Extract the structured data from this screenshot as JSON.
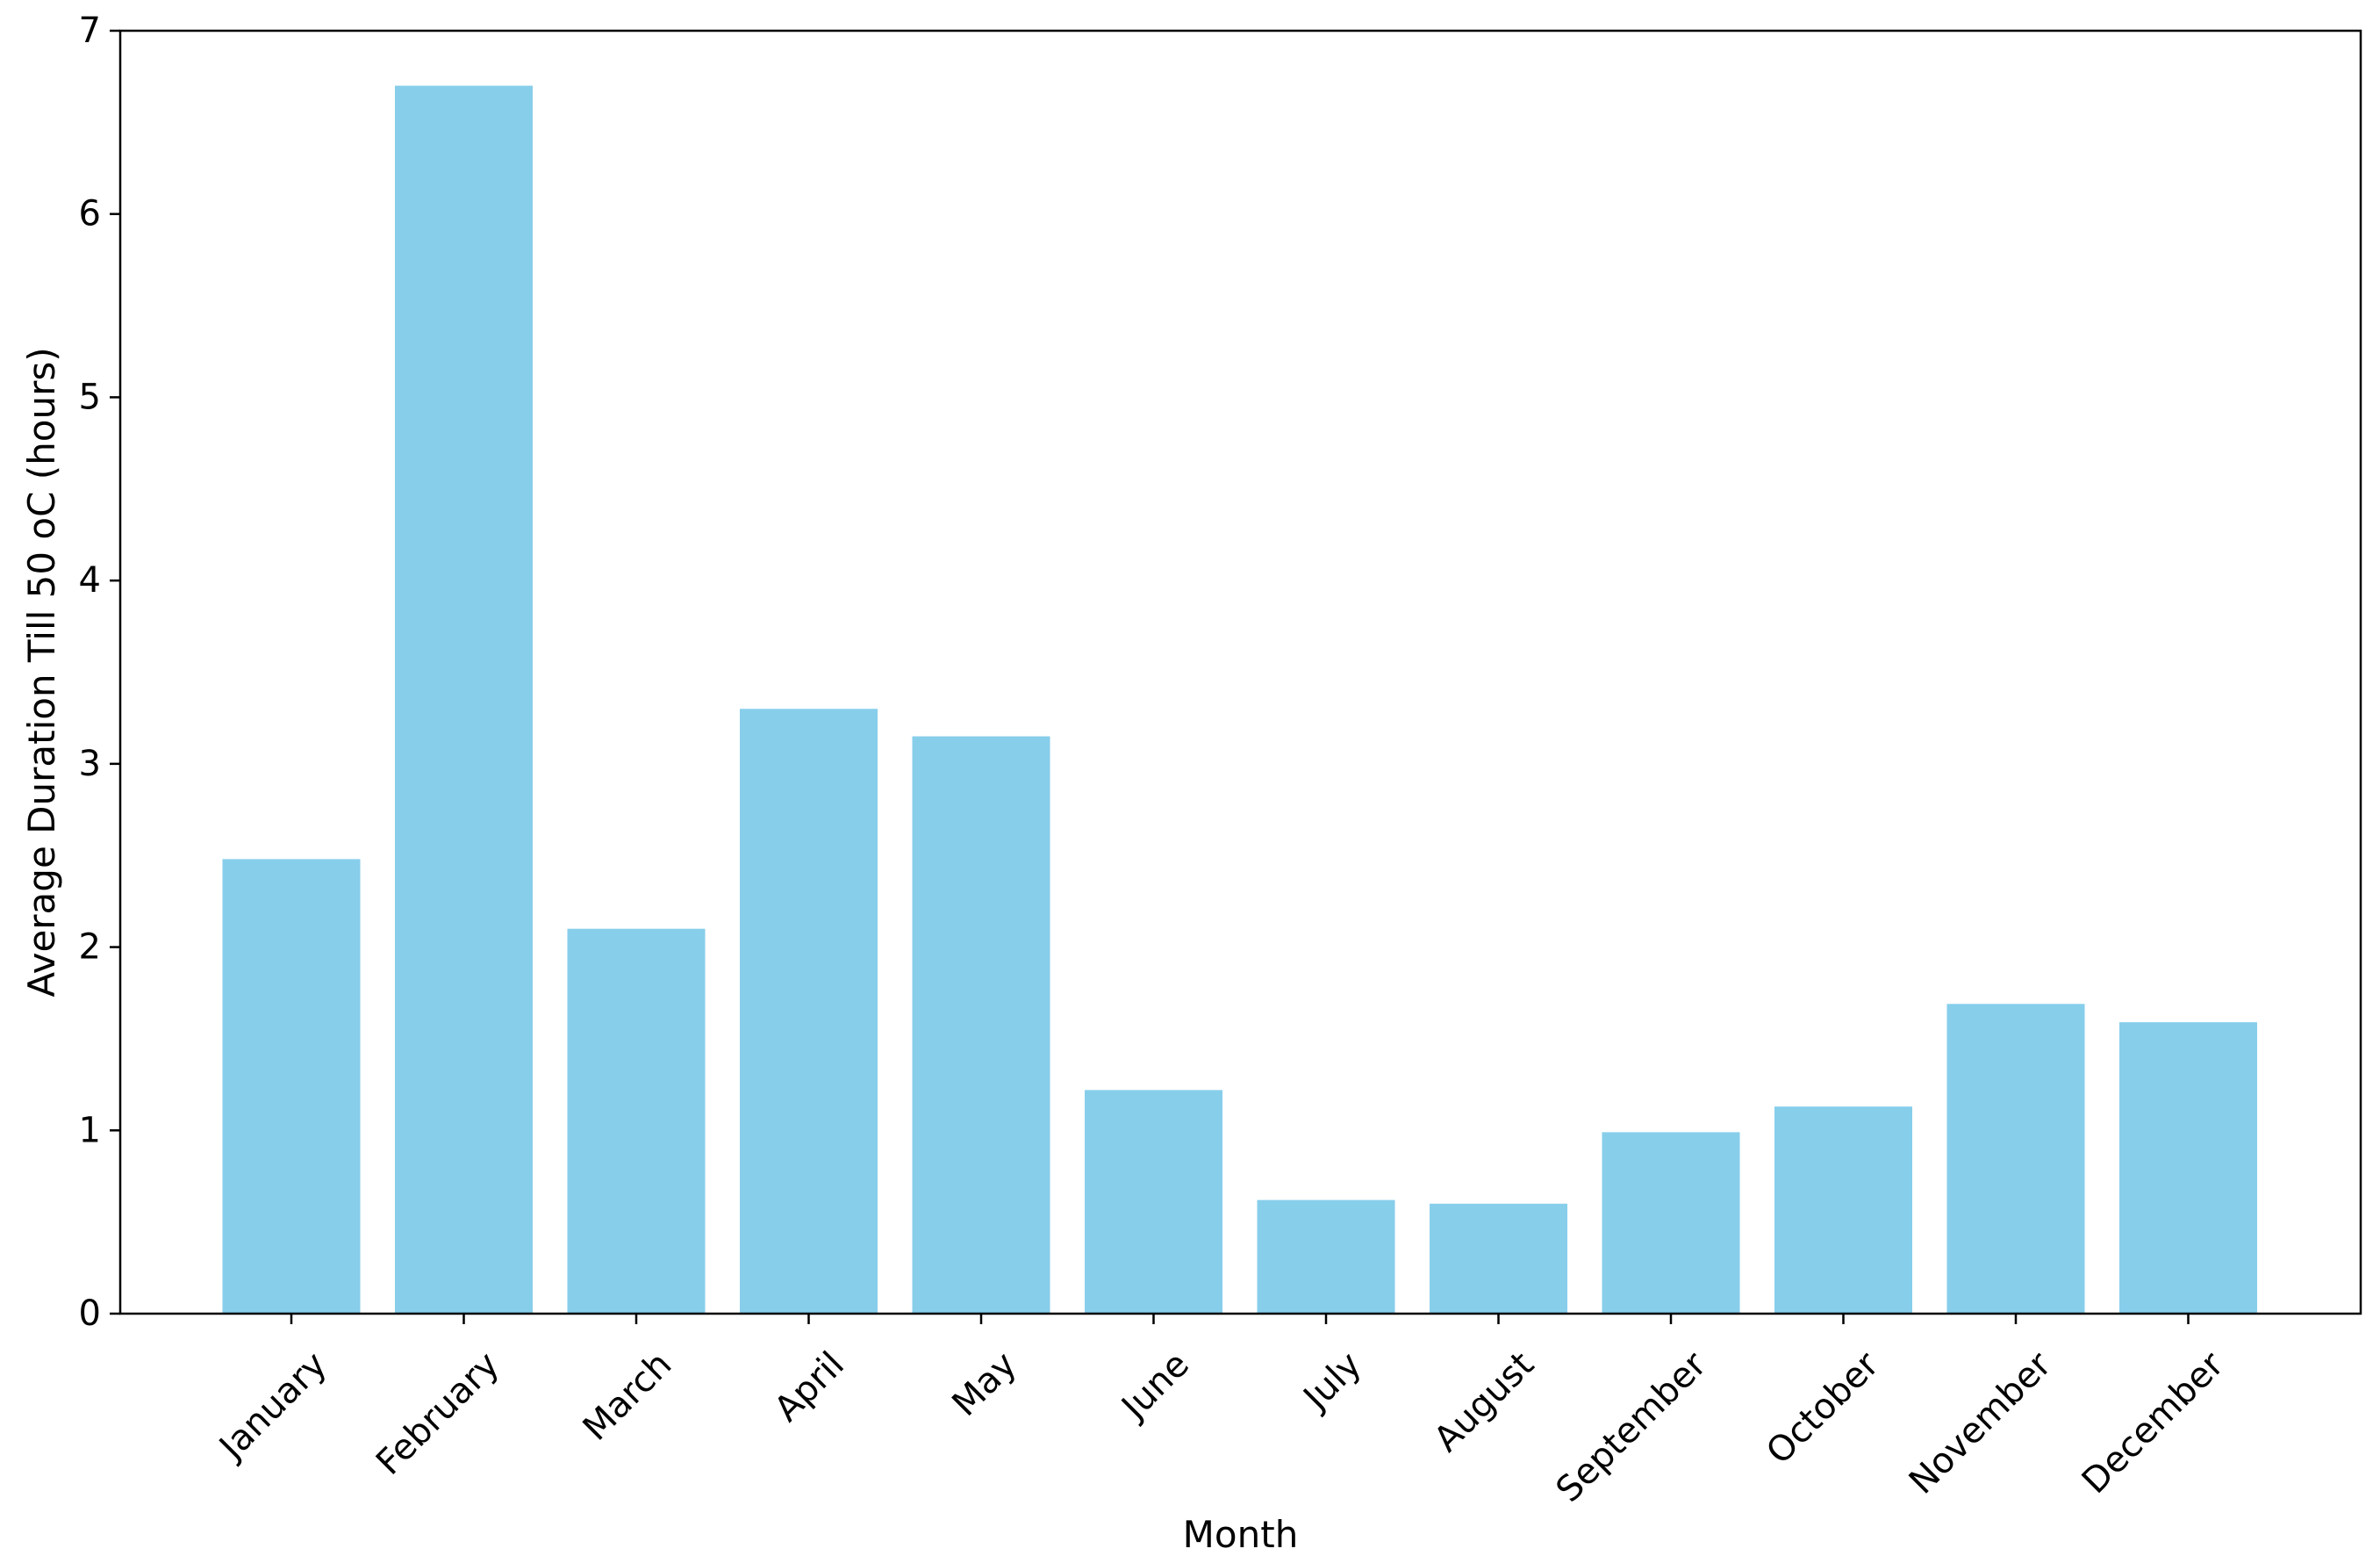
{
  "chart_data": {
    "type": "bar",
    "title": "",
    "xlabel": "Month",
    "ylabel": "Average Duration Till 50 oC (hours)",
    "categories": [
      "January",
      "February",
      "March",
      "April",
      "May",
      "June",
      "July",
      "August",
      "September",
      "October",
      "November",
      "December"
    ],
    "values": [
      2.48,
      6.7,
      2.1,
      3.3,
      3.15,
      1.22,
      0.62,
      0.6,
      0.99,
      1.13,
      1.69,
      1.59
    ],
    "ylim": [
      0,
      7
    ],
    "yticks": [
      0,
      1,
      2,
      3,
      4,
      5,
      6,
      7
    ],
    "bar_color": "#87CEEB",
    "grid": false,
    "legend": "none"
  }
}
